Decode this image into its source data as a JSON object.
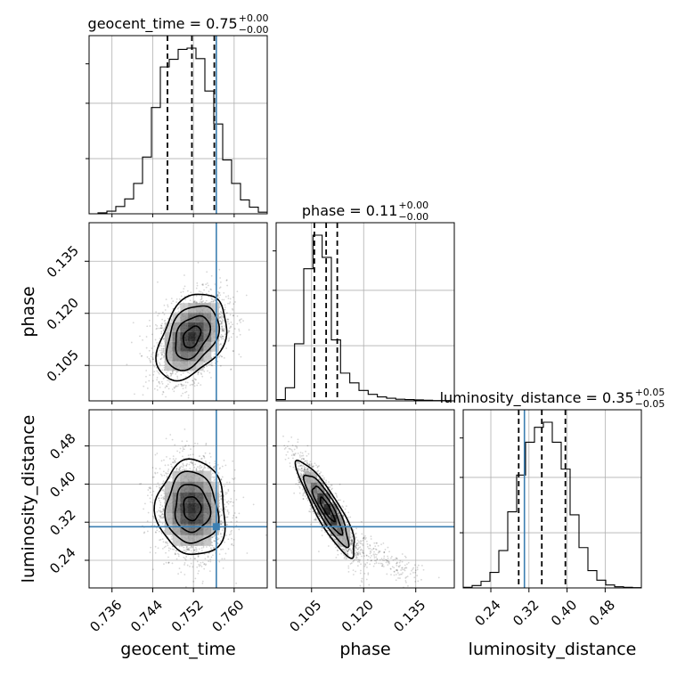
{
  "chart_data": {
    "type": "corner",
    "parameters": [
      "geocent_time",
      "phase",
      "luminosity_distance"
    ],
    "truth_color": "#3c7fb1",
    "titles": [
      {
        "param": "geocent_time",
        "text": "geocent_time = 0.75",
        "sup": "+0.00",
        "sub": "−0.00"
      },
      {
        "param": "phase",
        "text": "phase = 0.11",
        "sup": "+0.00",
        "sub": "−0.00"
      },
      {
        "param": "luminosity_distance",
        "text": "luminosity_distance = 0.35",
        "sup": "+0.05",
        "sub": "−0.05"
      }
    ],
    "axes": {
      "geocent_time": {
        "range": [
          0.7315,
          0.7665
        ],
        "ticks": [
          0.736,
          0.744,
          0.752,
          0.76
        ],
        "tick_labels": [
          "0.736",
          "0.744",
          "0.752",
          "0.760"
        ],
        "label": "geocent_time"
      },
      "phase": {
        "range": [
          0.0948,
          0.1461
        ],
        "ticks": [
          0.105,
          0.12,
          0.135
        ],
        "tick_labels": [
          "0.105",
          "0.120",
          "0.135"
        ],
        "label": "phase"
      },
      "luminosity_distance": {
        "range": [
          0.182,
          0.556
        ],
        "ticks": [
          0.24,
          0.32,
          0.4,
          0.48
        ],
        "tick_labels": [
          "0.24",
          "0.32",
          "0.40",
          "0.48"
        ],
        "label": "luminosity_distance"
      }
    },
    "truths": {
      "geocent_time": 0.7565,
      "phase": null,
      "luminosity_distance": 0.3105
    },
    "quantiles": {
      "geocent_time": [
        0.7469,
        0.7517,
        0.7561
      ],
      "phase": [
        0.1058,
        0.1092,
        0.1124
      ],
      "luminosity_distance": [
        0.2985,
        0.347,
        0.3965
      ]
    },
    "histograms": {
      "geocent_time": {
        "edges": [
          0.7315,
          0.73325,
          0.735,
          0.73675,
          0.7385,
          0.74025,
          0.742,
          0.74375,
          0.7455,
          0.74725,
          0.749,
          0.75075,
          0.7525,
          0.75425,
          0.756,
          0.75775,
          0.7595,
          0.76125,
          0.763,
          0.76475,
          0.7665
        ],
        "counts": [
          0,
          3,
          8,
          22,
          45,
          92,
          172,
          322,
          445,
          468,
          498,
          502,
          470,
          372,
          272,
          163,
          92,
          42,
          20,
          5
        ]
      },
      "phase": {
        "edges": [
          0.0948,
          0.09745,
          0.1001,
          0.10275,
          0.1054,
          0.10805,
          0.1107,
          0.11335,
          0.116,
          0.11865,
          0.1213,
          0.12395,
          0.1266,
          0.12925,
          0.1319,
          0.13455,
          0.1372,
          0.13985,
          0.1425,
          0.14515
        ],
        "counts": [
          4,
          40,
          175,
          405,
          508,
          440,
          187,
          85,
          55,
          32,
          20,
          12,
          8,
          5,
          4,
          3,
          2,
          1,
          1
        ]
      },
      "luminosity_distance": {
        "edges": [
          0.182,
          0.2007,
          0.2194,
          0.2381,
          0.2568,
          0.2755,
          0.2942,
          0.3129,
          0.3316,
          0.3503,
          0.369,
          0.3877,
          0.4064,
          0.4251,
          0.4438,
          0.4625,
          0.4812,
          0.4999,
          0.5186,
          0.5373,
          0.556
        ],
        "counts": [
          2,
          8,
          22,
          52,
          125,
          255,
          378,
          488,
          538,
          555,
          488,
          398,
          245,
          135,
          58,
          26,
          10,
          4,
          2,
          1
        ]
      }
    },
    "pairs": [
      {
        "x": "geocent_time",
        "y": "phase",
        "center": [
          0.7517,
          0.1132
        ],
        "sigma": [
          0.0034,
          0.0062
        ],
        "rho": 0.38,
        "truth_x": 0.7565,
        "truth_y": null
      },
      {
        "x": "geocent_time",
        "y": "luminosity_distance",
        "center": [
          0.7517,
          0.349
        ],
        "sigma": [
          0.0034,
          0.05
        ],
        "rho": -0.05,
        "truth_x": 0.7565,
        "truth_y": 0.3105
      },
      {
        "x": "phase",
        "y": "luminosity_distance",
        "center": [
          0.1095,
          0.347
        ],
        "sigma": [
          0.0042,
          0.05
        ],
        "rho": -0.88,
        "truth_x": null,
        "truth_y": 0.3105
      }
    ],
    "grid": true,
    "legend": "none"
  }
}
